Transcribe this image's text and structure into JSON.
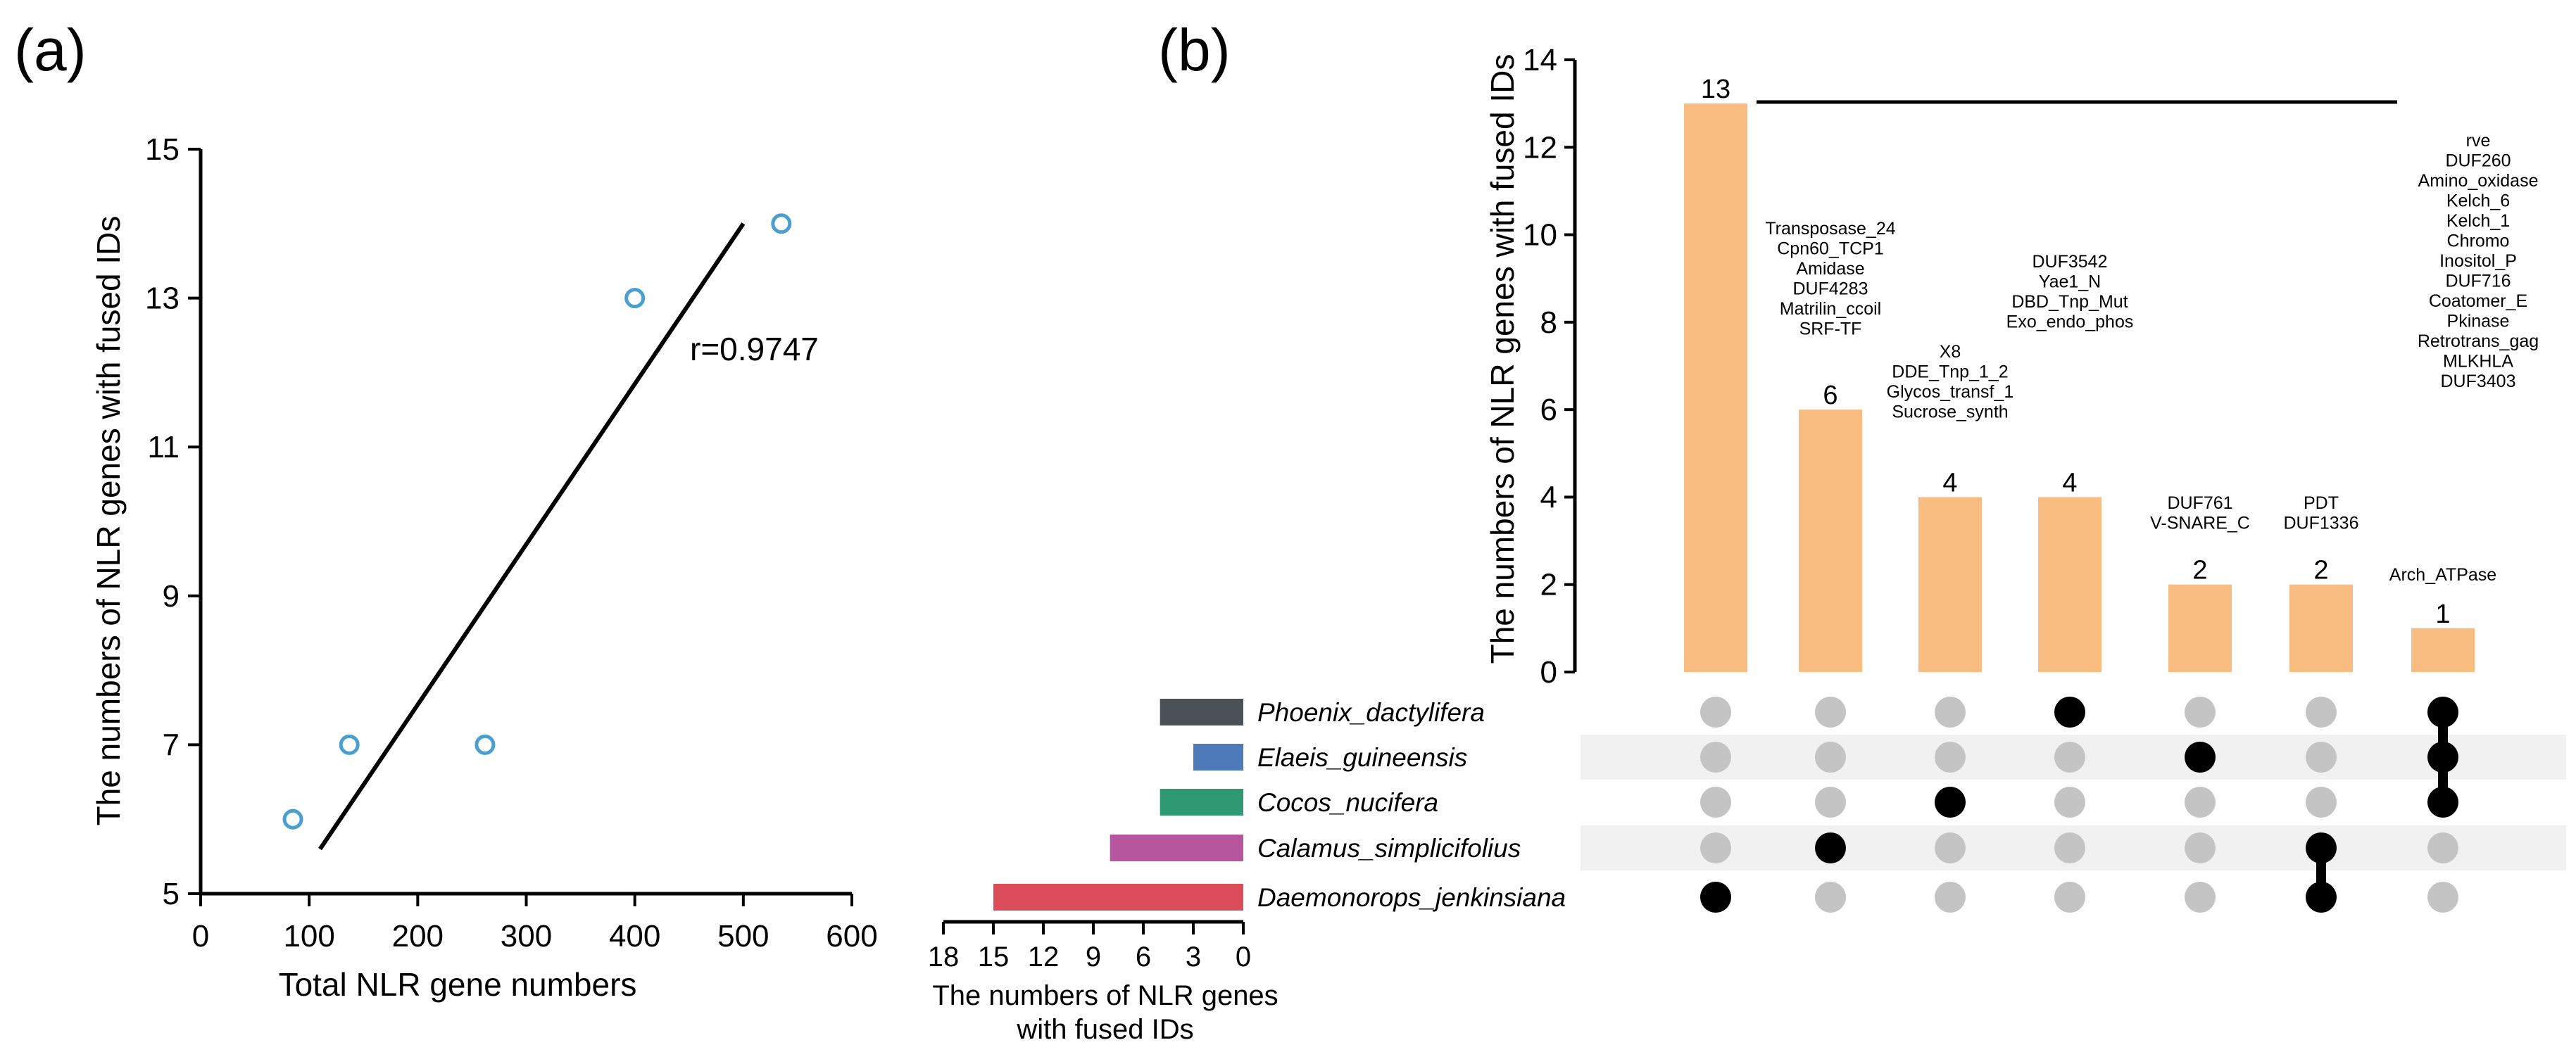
{
  "panels": {
    "a": "(a)",
    "b": "(b)"
  },
  "chart_data": [
    {
      "type": "scatter",
      "xlabel": "Total NLR gene numbers",
      "ylabel": "The numbers of NLR genes with fused IDs",
      "xlim": [
        0,
        600
      ],
      "ylim": [
        5,
        15
      ],
      "xticks": [
        0,
        100,
        200,
        300,
        400,
        500,
        600
      ],
      "yticks": [
        5,
        7,
        9,
        11,
        13,
        15
      ],
      "points": [
        {
          "x": 85,
          "y": 6
        },
        {
          "x": 137,
          "y": 7
        },
        {
          "x": 262,
          "y": 7
        },
        {
          "x": 400,
          "y": 13
        },
        {
          "x": 535,
          "y": 14
        }
      ],
      "fit_line": [
        {
          "x": 110,
          "y": 5.6
        },
        {
          "x": 500,
          "y": 14
        }
      ],
      "annotation": "r=0.9747",
      "marker_color": "#4a9fd0"
    },
    {
      "type": "bar",
      "orientation": "horizontal",
      "xlabel_lines": [
        "The numbers of NLR genes",
        "with fused IDs"
      ],
      "xlim": [
        0,
        18
      ],
      "xticks": [
        18,
        15,
        12,
        9,
        6,
        3,
        0
      ],
      "categories": [
        "Phoenix_dactylifera",
        "Elaeis_guineensis",
        "Cocos_nucifera",
        "Calamus_simplicifolius",
        "Daemonorops_jenkinsiana"
      ],
      "values": [
        5,
        3,
        5,
        8,
        15
      ],
      "colors": [
        "#4c5157",
        "#4f7ab9",
        "#2f9a72",
        "#b5569e",
        "#dc4d5b"
      ]
    },
    {
      "type": "bar",
      "ylabel": "The numbers of NLR genes with fused IDs",
      "ylim": [
        0,
        14
      ],
      "yticks": [
        0,
        2,
        4,
        6,
        8,
        10,
        12,
        14
      ],
      "values": [
        13,
        6,
        4,
        4,
        2,
        2,
        1
      ],
      "bar_color": "#f8bb80",
      "id_labels": [
        [
          "rve",
          "DUF260",
          "Amino_oxidase",
          "Kelch_6",
          "Kelch_1",
          "Chromo",
          "Inositol_P",
          "DUF716",
          "Coatomer_E",
          "Pkinase",
          "Retrotrans_gag",
          "MLKHLA",
          "DUF3403"
        ],
        [
          "Transposase_24",
          "Cpn60_TCP1",
          "Amidase",
          "DUF4283",
          "Matrilin_ccoil",
          "SRF-TF"
        ],
        [
          "X8",
          "DDE_Tnp_1_2",
          "Glycos_transf_1",
          "Sucrose_synth"
        ],
        [
          "DUF3542",
          "Yae1_N",
          "DBD_Tnp_Mut",
          "Exo_endo_phos"
        ],
        [
          "DUF761",
          "V-SNARE_C"
        ],
        [
          "PDT",
          "DUF1336"
        ],
        [
          "Arch_ATPase"
        ]
      ],
      "membership": [
        [
          4
        ],
        [
          3
        ],
        [
          2
        ],
        [
          0
        ],
        [
          1
        ],
        [
          3,
          4
        ],
        [
          0,
          1,
          2
        ]
      ],
      "dot_active_color": "#000000",
      "dot_inactive_color": "#c4c4c4"
    }
  ]
}
